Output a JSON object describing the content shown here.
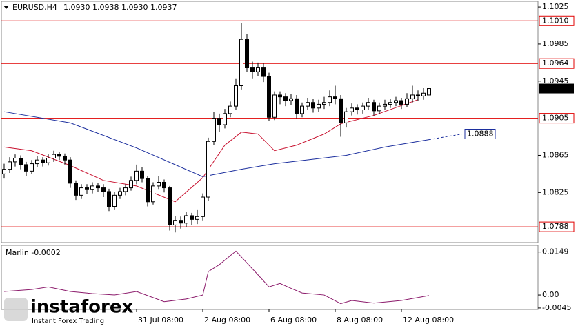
{
  "chart_data": {
    "type": "candlestick",
    "header": {
      "symbol": "EURUSD,H4",
      "ohlc": "1.0930 1.0938 1.0930 1.0937"
    },
    "categories": [
      null,
      null,
      null,
      null,
      null,
      null,
      null,
      null,
      null,
      null,
      null,
      null,
      null,
      null,
      null,
      null,
      null,
      null,
      null,
      null,
      null,
      null,
      null,
      null,
      "31 Jul 08:00",
      null,
      null,
      null,
      null,
      null,
      null,
      null,
      null,
      null,
      null,
      null,
      "2 Aug 08:00",
      null,
      null,
      null,
      null,
      null,
      null,
      null,
      null,
      null,
      null,
      null,
      "6 Aug 08:00",
      null,
      null,
      null,
      null,
      null,
      null,
      null,
      null,
      null,
      null,
      null,
      "8 Aug 08:00",
      null,
      null,
      null,
      null,
      null,
      null,
      null,
      null,
      null,
      null,
      null,
      "12 Aug 08:00",
      null,
      null,
      null,
      null,
      null
    ],
    "open": [
      1.0845,
      1.085,
      1.0858,
      1.0862,
      1.0855,
      1.0848,
      1.0856,
      1.086,
      1.0857,
      1.0862,
      1.0866,
      1.0864,
      1.086,
      1.0835,
      1.0822,
      1.083,
      1.0828,
      1.0832,
      1.083,
      1.0826,
      1.081,
      1.0822,
      1.0826,
      1.083,
      1.0838,
      1.0848,
      1.084,
      1.0815,
      1.0832,
      1.0836,
      1.083,
      1.079,
      1.0795,
      1.0792,
      1.08,
      1.0796,
      1.0799,
      1.082,
      1.088,
      1.0905,
      1.0898,
      1.091,
      1.0918,
      1.094,
      1.099,
      1.096,
      1.0955,
      1.096,
      1.095,
      1.0906,
      1.093,
      1.0928,
      1.0924,
      1.0926,
      1.091,
      1.0918,
      1.0922,
      1.0916,
      1.092,
      1.0922,
      1.0928,
      1.0926,
      1.09,
      1.0912,
      1.0916,
      1.0914,
      1.0918,
      1.0922,
      1.0913,
      1.0918,
      1.092,
      1.0922,
      1.0924,
      1.092,
      1.0926,
      1.093,
      1.0929,
      1.093
    ],
    "high": [
      1.0856,
      1.0863,
      1.0866,
      1.0865,
      1.0858,
      1.086,
      1.0864,
      1.0863,
      1.0866,
      1.087,
      1.0869,
      1.0867,
      1.0863,
      1.0838,
      1.0834,
      1.0834,
      1.0836,
      1.0835,
      1.0834,
      1.0829,
      1.0826,
      1.083,
      1.0834,
      1.0842,
      1.0855,
      1.0852,
      1.0843,
      1.0836,
      1.0843,
      1.0839,
      1.0832,
      1.08,
      1.0799,
      1.0804,
      1.0803,
      1.0806,
      1.0824,
      1.0884,
      1.0912,
      1.091,
      1.0915,
      1.0923,
      1.0948,
      1.1008,
      1.0996,
      1.0966,
      1.0965,
      1.0964,
      1.0954,
      1.0934,
      1.0934,
      1.0932,
      1.0931,
      1.093,
      1.0922,
      1.0927,
      1.0926,
      1.0925,
      1.0928,
      1.0935,
      1.094,
      1.093,
      1.0916,
      1.0921,
      1.092,
      1.0922,
      1.0927,
      1.0925,
      1.0922,
      1.0925,
      1.0926,
      1.0928,
      1.0927,
      1.0932,
      1.094,
      1.0935,
      1.0938,
      1.0938
    ],
    "low": [
      1.084,
      1.0846,
      1.0853,
      1.085,
      1.0843,
      1.0845,
      1.0852,
      1.0853,
      1.0854,
      1.0858,
      1.086,
      1.0855,
      1.083,
      1.0817,
      1.0818,
      1.0823,
      1.0824,
      1.0826,
      1.082,
      1.0805,
      1.0806,
      1.0818,
      1.0822,
      1.0827,
      1.0834,
      1.0836,
      1.081,
      1.0812,
      1.0828,
      1.0825,
      1.0784,
      1.0782,
      1.0786,
      1.0788,
      1.079,
      1.0791,
      1.0795,
      1.0816,
      1.0876,
      1.089,
      1.0894,
      1.0906,
      1.0914,
      1.0936,
      1.0955,
      1.0948,
      1.095,
      1.0944,
      1.0902,
      1.0903,
      1.092,
      1.0918,
      1.0919,
      1.0905,
      1.0906,
      1.0914,
      1.0911,
      1.0912,
      1.0915,
      1.0918,
      1.092,
      1.0885,
      1.0895,
      1.0908,
      1.0909,
      1.091,
      1.0914,
      1.0908,
      1.091,
      1.0914,
      1.0916,
      1.0918,
      1.0915,
      1.0917,
      1.0922,
      1.0924,
      1.0925,
      1.093
    ],
    "close": [
      1.085,
      1.0858,
      1.0862,
      1.0855,
      1.0848,
      1.0856,
      1.086,
      1.0857,
      1.0862,
      1.0866,
      1.0864,
      1.086,
      1.0835,
      1.0822,
      1.083,
      1.0828,
      1.0832,
      1.083,
      1.0826,
      1.081,
      1.0822,
      1.0826,
      1.083,
      1.0838,
      1.0848,
      1.084,
      1.0815,
      1.0832,
      1.0836,
      1.083,
      1.079,
      1.0795,
      1.0792,
      1.08,
      1.0796,
      1.0799,
      1.082,
      1.088,
      1.0905,
      1.0898,
      1.091,
      1.0918,
      1.094,
      1.099,
      1.096,
      1.0955,
      1.096,
      1.095,
      1.0906,
      1.093,
      1.0928,
      1.0924,
      1.0926,
      1.091,
      1.0918,
      1.0922,
      1.0916,
      1.092,
      1.0922,
      1.0928,
      1.0926,
      1.09,
      1.0912,
      1.0916,
      1.0914,
      1.0918,
      1.0922,
      1.0913,
      1.0918,
      1.092,
      1.0922,
      1.0924,
      1.092,
      1.0926,
      1.093,
      1.0929,
      1.0932,
      1.0937
    ],
    "lines": [
      {
        "color": "#1c2f9e",
        "x": [
          0,
          12,
          24,
          36,
          43,
          49,
          62,
          69,
          77
        ],
        "values": [
          1.0912,
          1.09,
          1.0873,
          1.0842,
          1.085,
          1.0856,
          1.0865,
          1.0874,
          1.0882
        ]
      },
      {
        "color": "#c8102e",
        "x": [
          0,
          5,
          12,
          18,
          24,
          31,
          36,
          40,
          43,
          46,
          49,
          53,
          58,
          61,
          67,
          75
        ],
        "values": [
          1.0874,
          1.087,
          1.0854,
          1.0838,
          1.0832,
          1.0815,
          1.0841,
          1.0876,
          1.089,
          1.0888,
          1.087,
          1.0876,
          1.0888,
          1.0899,
          1.0908,
          1.0925
        ]
      }
    ],
    "projection": {
      "color": "#1c2f9e",
      "x": [
        77,
        83
      ],
      "values": [
        1.0882,
        1.0888
      ]
    },
    "levels": [
      {
        "value": 1.101,
        "label": "1.1010"
      },
      1.0964,
      1.0905,
      1.0788
    ],
    "level_color": "#e00000",
    "last_price": 1.0937,
    "ylim": [
      1.0771,
      1.1031
    ],
    "yticks": [
      1.1025,
      1.0985,
      1.0945,
      1.0865,
      1.0825
    ],
    "indicator": {
      "title": "Marlin -0.0002",
      "color": "#8b1a6b",
      "x": [
        0,
        5,
        8,
        12,
        16,
        20,
        24,
        29,
        33,
        36,
        37,
        39,
        42,
        46,
        48,
        50,
        52,
        54,
        58,
        61,
        63,
        67,
        72,
        77
      ],
      "values": [
        0.0012,
        0.0019,
        0.0028,
        0.0012,
        0.0005,
        0,
        0.0012,
        -0.0023,
        -0.0014,
        0,
        0.0081,
        0.0105,
        0.0152,
        0.007,
        0.0028,
        0.004,
        0.0023,
        0.0007,
        0,
        -0.003,
        -0.0019,
        -0.0028,
        -0.0019,
        -0.0002
      ],
      "ylim": [
        -0.005,
        0.0172
      ],
      "yticks": [
        0.0149,
        {
          "value": 0,
          "label": "0.00"
        },
        -0.0045
      ]
    },
    "watermark": {
      "brand": "instaforex",
      "slogan": "Instant Forex Trading"
    }
  }
}
